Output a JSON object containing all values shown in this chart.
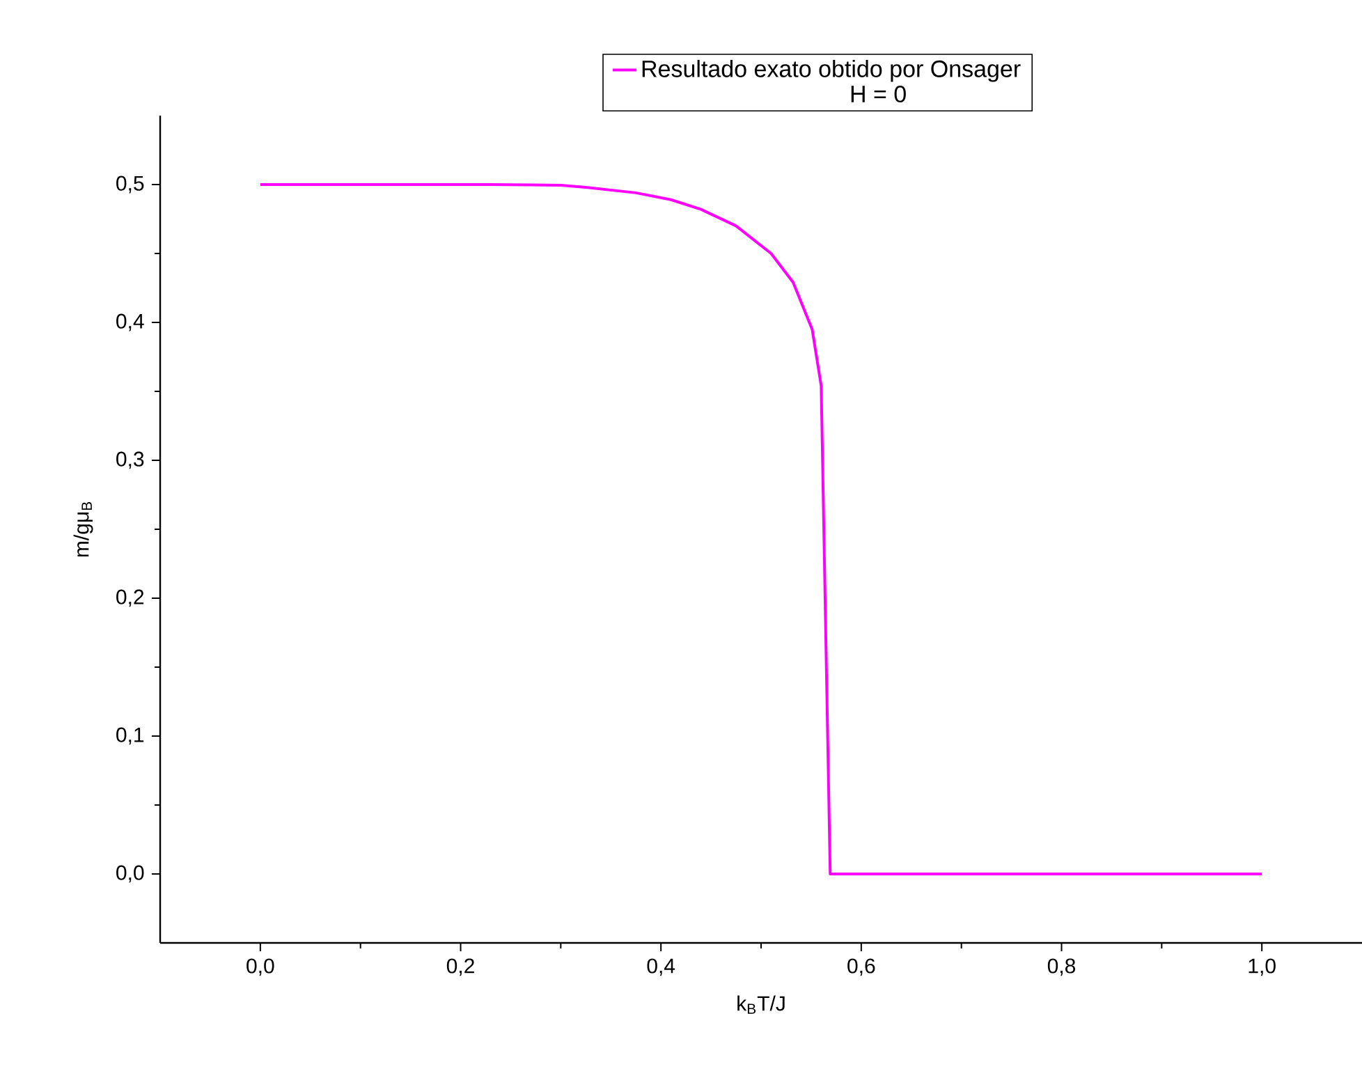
{
  "chart_data": {
    "type": "line",
    "xlabel": "k$_{B}$T/J",
    "ylabel": "m/gμ$_{B}$",
    "legend_title": "H = 0",
    "legend": "top",
    "xlim": [
      -0.1,
      1.1
    ],
    "ylim": [
      -0.05,
      0.55
    ],
    "xticks": [
      {
        "value": 0,
        "label": "0,0"
      },
      {
        "value": 0.2,
        "label": "0,2"
      },
      {
        "value": 0.4,
        "label": "0,4"
      },
      {
        "value": 0.6,
        "label": "0,6"
      },
      {
        "value": 0.8,
        "label": "0,8"
      },
      {
        "value": 1,
        "label": "1,0"
      }
    ],
    "yticks": [
      {
        "value": 0,
        "label": "0,0"
      },
      {
        "value": 0.1,
        "label": "0,1"
      },
      {
        "value": 0.2,
        "label": "0,2"
      },
      {
        "value": 0.3,
        "label": "0,3"
      },
      {
        "value": 0.4,
        "label": "0,4"
      },
      {
        "value": 0.5,
        "label": "0,5"
      }
    ],
    "grid": false,
    "marker": "none",
    "line_style": "solid",
    "series": [
      {
        "name": "Resultado exato obtido por Onsager",
        "color": "#ff00ff",
        "x": [
          0,
          0.1,
          0.2,
          0.226,
          0.3,
          0.325,
          0.375,
          0.41,
          0.44,
          0.475,
          0.51,
          0.532,
          0.551,
          0.56,
          0.569,
          0.6,
          0.8,
          1.0
        ],
        "values": [
          0.5,
          0.5,
          0.5,
          0.5,
          0.4995,
          0.498,
          0.494,
          0.489,
          0.482,
          0.47,
          0.45,
          0.429,
          0.395,
          0.354,
          0.0,
          0.0,
          0.0,
          0.0
        ]
      }
    ]
  }
}
